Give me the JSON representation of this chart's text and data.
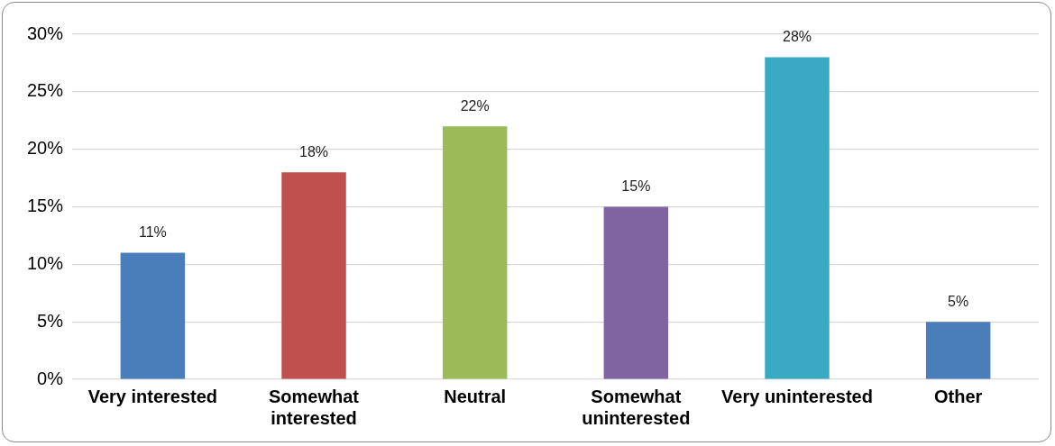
{
  "chart_data": {
    "type": "bar",
    "categories": [
      "Very interested",
      "Somewhat interested",
      "Neutral",
      "Somewhat uninterested",
      "Very uninterested",
      "Other"
    ],
    "values": [
      11,
      18,
      22,
      15,
      28,
      5
    ],
    "colors": [
      "#4a7ebb",
      "#c0504d",
      "#9bbb59",
      "#8064a2",
      "#38abc2",
      "#4a7ebb"
    ],
    "value_labels": [
      "11%",
      "18%",
      "22%",
      "15%",
      "28%",
      "5%"
    ],
    "ylim": [
      0,
      30
    ],
    "yticks": [
      {
        "value": 0,
        "label": "0%"
      },
      {
        "value": 5,
        "label": "5%"
      },
      {
        "value": 10,
        "label": "10%"
      },
      {
        "value": 15,
        "label": "15%"
      },
      {
        "value": 20,
        "label": "20%"
      },
      {
        "value": 25,
        "label": "25%"
      },
      {
        "value": 30,
        "label": "30%"
      }
    ],
    "grid": "y",
    "legend": false
  }
}
